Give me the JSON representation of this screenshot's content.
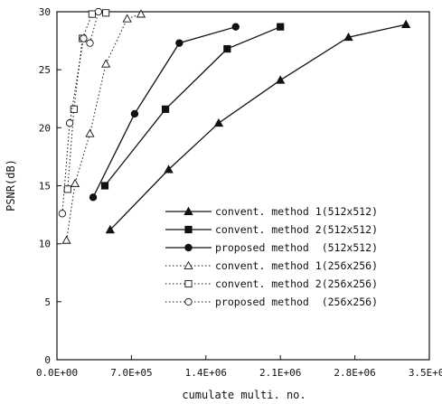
{
  "chart_data": {
    "type": "line",
    "xlabel": "cumulate multi. no.",
    "ylabel": "PSNR(dB)",
    "xlim": [
      0,
      3500000
    ],
    "ylim": [
      0,
      30
    ],
    "x_ticks": [
      0,
      700000,
      1400000,
      2100000,
      2800000,
      3500000
    ],
    "x_tick_labels": [
      "0.0E+00",
      "7.0E+05",
      "1.4E+06",
      "2.1E+06",
      "2.8E+06",
      "3.5E+06"
    ],
    "y_ticks": [
      0,
      5,
      10,
      15,
      20,
      25,
      30
    ],
    "y_tick_labels": [
      "0",
      "5",
      "10",
      "15",
      "20",
      "25",
      "30"
    ],
    "grid": false,
    "legend_position": "lower-right",
    "series": [
      {
        "name": "convent. method 1(512x512)",
        "marker": "triangle-filled",
        "line": "solid",
        "x": [
          500000,
          1050000,
          1520000,
          2100000,
          2740000,
          3280000
        ],
        "y": [
          11.2,
          16.4,
          20.4,
          24.1,
          27.8,
          28.9
        ]
      },
      {
        "name": "convent. method 2(512x512)",
        "marker": "square-filled",
        "line": "solid",
        "x": [
          450000,
          1020000,
          1600000,
          2100000
        ],
        "y": [
          15.0,
          21.6,
          26.8,
          28.7
        ]
      },
      {
        "name": "proposed method  (512x512)",
        "marker": "circle-filled",
        "line": "solid",
        "x": [
          340000,
          730000,
          1150000,
          1680000
        ],
        "y": [
          14.0,
          21.2,
          27.3,
          28.7
        ]
      },
      {
        "name": "convent. method 1(256x256)",
        "marker": "triangle-open",
        "line": "dotted",
        "x": [
          90000,
          170000,
          310000,
          460000,
          660000,
          790000
        ],
        "y": [
          10.3,
          15.2,
          19.5,
          25.5,
          29.4,
          29.8
        ]
      },
      {
        "name": "convent. method 2(256x256)",
        "marker": "square-open",
        "line": "dotted",
        "x": [
          100000,
          160000,
          240000,
          330000,
          460000
        ],
        "y": [
          14.7,
          21.6,
          27.7,
          29.8,
          29.9
        ]
      },
      {
        "name": "proposed method  (256x256)",
        "marker": "circle-open",
        "line": "dotted",
        "x": [
          50000,
          120000,
          250000,
          310000,
          390000
        ],
        "y": [
          12.6,
          20.4,
          27.7,
          27.3,
          30.0
        ]
      }
    ]
  }
}
